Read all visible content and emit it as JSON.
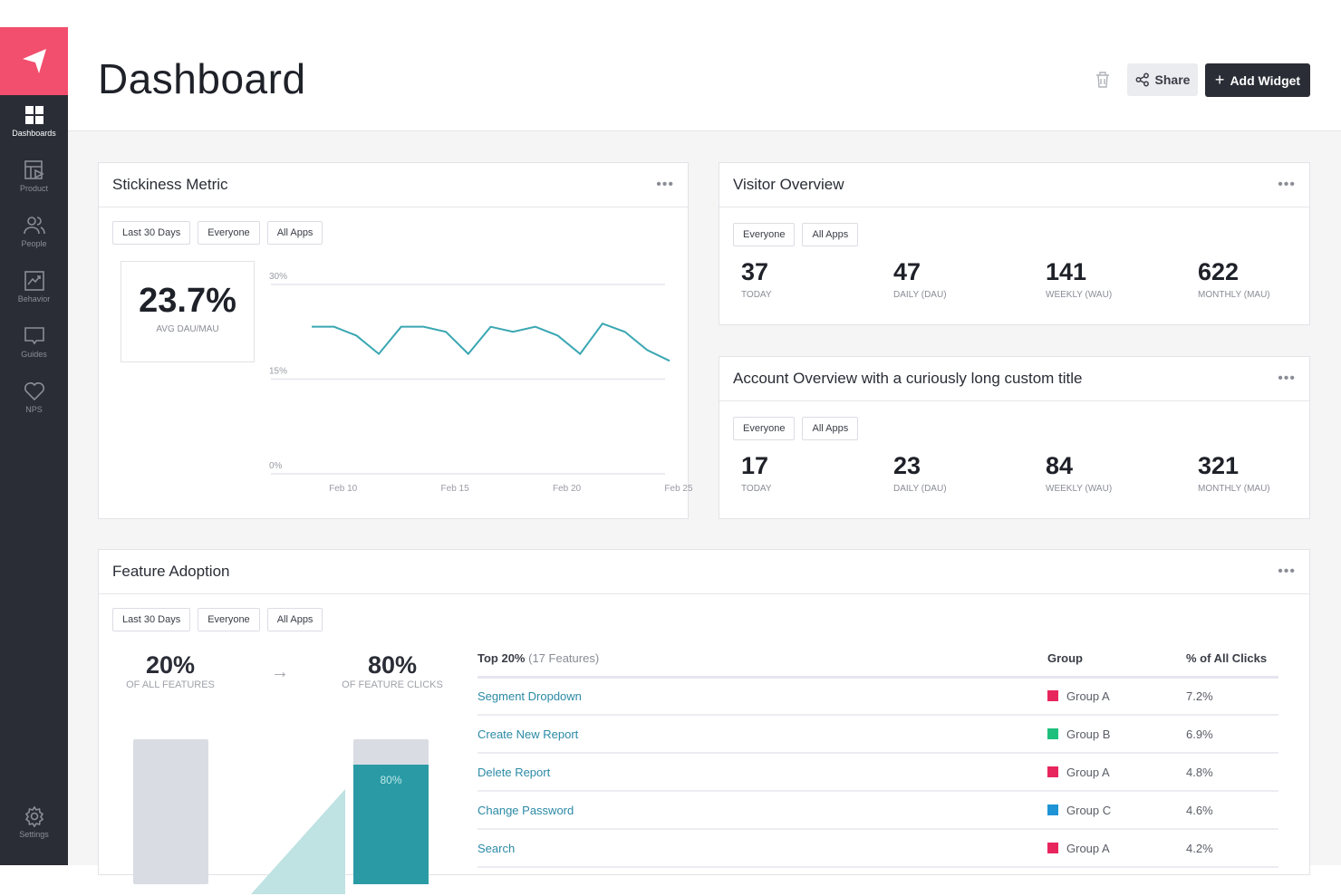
{
  "sidebar": {
    "items": [
      {
        "label": "Dashboards",
        "icon": "grid-icon"
      },
      {
        "label": "Product",
        "icon": "product-icon"
      },
      {
        "label": "People",
        "icon": "people-icon"
      },
      {
        "label": "Behavior",
        "icon": "behavior-icon"
      },
      {
        "label": "Guides",
        "icon": "guides-icon"
      },
      {
        "label": "NPS",
        "icon": "heart-icon"
      }
    ],
    "settings": "Settings",
    "brand_color": "#f24e6e"
  },
  "header": {
    "title": "Dashboard",
    "share": "Share",
    "add_widget": "Add Widget"
  },
  "stickiness": {
    "title": "Stickiness Metric",
    "filters": [
      "Last 30 Days",
      "Everyone",
      "All Apps"
    ],
    "value": "23.7%",
    "label": "AVG DAU/MAU",
    "chart_data": {
      "type": "line",
      "color": "#3aa7b2",
      "ylim": [
        0,
        30
      ],
      "yticks": [
        "30%",
        "15%",
        "0%"
      ],
      "xticks": [
        "Feb 10",
        "Feb 15",
        "Feb 20",
        "Feb 25"
      ],
      "x": [
        "Feb 9",
        "Feb 10",
        "Feb 11",
        "Feb 12",
        "Feb 13",
        "Feb 14",
        "Feb 15",
        "Feb 16",
        "Feb 17",
        "Feb 18",
        "Feb 19",
        "Feb 20",
        "Feb 21",
        "Feb 22",
        "Feb 23",
        "Feb 24",
        "Feb 25"
      ],
      "values": [
        23.3,
        23.3,
        21.9,
        19.0,
        23.3,
        23.3,
        22.5,
        19.0,
        23.3,
        22.5,
        23.3,
        21.9,
        19.0,
        23.8,
        22.5,
        19.6,
        17.9
      ]
    }
  },
  "visitor": {
    "title": "Visitor Overview",
    "filters": [
      "Everyone",
      "All Apps"
    ],
    "metrics": [
      {
        "v": "37",
        "l": "TODAY"
      },
      {
        "v": "47",
        "l": "DAILY (DAU)"
      },
      {
        "v": "141",
        "l": "WEEKLY (WAU)"
      },
      {
        "v": "622",
        "l": "MONTHLY (MAU)"
      }
    ]
  },
  "account": {
    "title": "Account Overview with a curiously long custom title",
    "filters": [
      "Everyone",
      "All Apps"
    ],
    "metrics": [
      {
        "v": "17",
        "l": "TODAY"
      },
      {
        "v": "23",
        "l": "DAILY (DAU)"
      },
      {
        "v": "84",
        "l": "WEEKLY (WAU)"
      },
      {
        "v": "321",
        "l": "MONTHLY (MAU)"
      }
    ]
  },
  "feature": {
    "title": "Feature Adoption",
    "filters": [
      "Last 30 Days",
      "Everyone",
      "All Apps"
    ],
    "left": {
      "v": "20%",
      "l": "OF ALL FEATURES"
    },
    "right": {
      "v": "80%",
      "l": "OF FEATURE CLICKS"
    },
    "bar_label": "80%",
    "bar_fill": 0.8,
    "table": {
      "h_top": "Top 20%",
      "h_count": "(17 Features)",
      "h_group": "Group",
      "h_pct": "% of All Clicks",
      "rows": [
        {
          "name": "Segment Dropdown",
          "group": "Group A",
          "color": "#e8265e",
          "pct": "7.2%"
        },
        {
          "name": "Create New Report",
          "group": "Group B",
          "color": "#1fc07d",
          "pct": "6.9%"
        },
        {
          "name": "Delete Report",
          "group": "Group A",
          "color": "#e8265e",
          "pct": "4.8%"
        },
        {
          "name": "Change Password",
          "group": "Group C",
          "color": "#1e93d6",
          "pct": "4.6%"
        },
        {
          "name": "Search",
          "group": "Group A",
          "color": "#e8265e",
          "pct": "4.2%"
        }
      ]
    }
  }
}
